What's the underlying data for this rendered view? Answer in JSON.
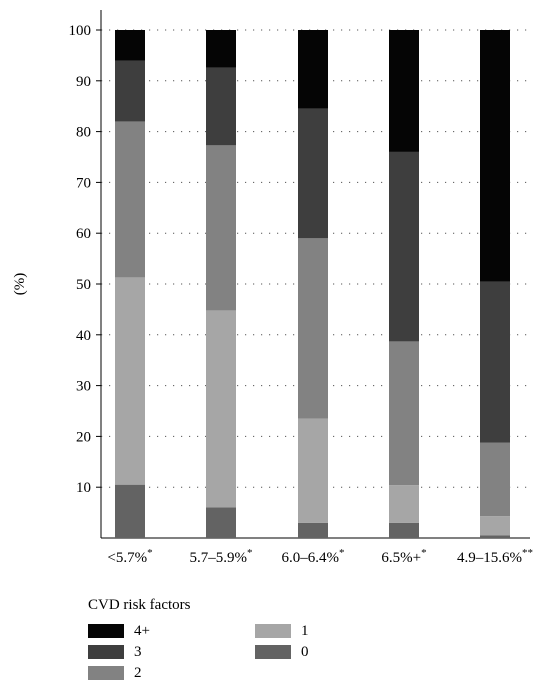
{
  "chart_data": {
    "type": "bar",
    "stacked": true,
    "ylabel": "(%)",
    "xlabel": "",
    "ylim": [
      0,
      100
    ],
    "yticks": [
      10,
      20,
      30,
      40,
      50,
      60,
      70,
      80,
      90,
      100
    ],
    "grid": "dotted horizontal",
    "categories": [
      {
        "label": "<5.7%",
        "mark": "*"
      },
      {
        "label": "5.7–5.9%",
        "mark": "*"
      },
      {
        "label": "6.0–6.4%",
        "mark": "*"
      },
      {
        "label": "6.5%+",
        "mark": "*"
      },
      {
        "label": "4.9–15.6%",
        "mark": "**"
      }
    ],
    "series": [
      {
        "name": "0",
        "color": "#636363",
        "values": [
          10.5,
          6,
          3,
          3,
          0.5
        ]
      },
      {
        "name": "1",
        "color": "#a6a6a6",
        "values": [
          40.8,
          38.8,
          20.5,
          7.4,
          3.8
        ]
      },
      {
        "name": "2",
        "color": "#828282",
        "values": [
          30.7,
          32.5,
          35.5,
          28.3,
          14.5
        ]
      },
      {
        "name": "3",
        "color": "#3e3e3e",
        "values": [
          12,
          15.3,
          25.5,
          37.3,
          31.7
        ]
      },
      {
        "name": "4+",
        "color": "#050505",
        "values": [
          6,
          7.4,
          15.5,
          24,
          49.5
        ]
      }
    ]
  },
  "legend": {
    "title": "CVD risk factors",
    "order": [
      "4+",
      "3",
      "2",
      "1",
      "0"
    ]
  }
}
